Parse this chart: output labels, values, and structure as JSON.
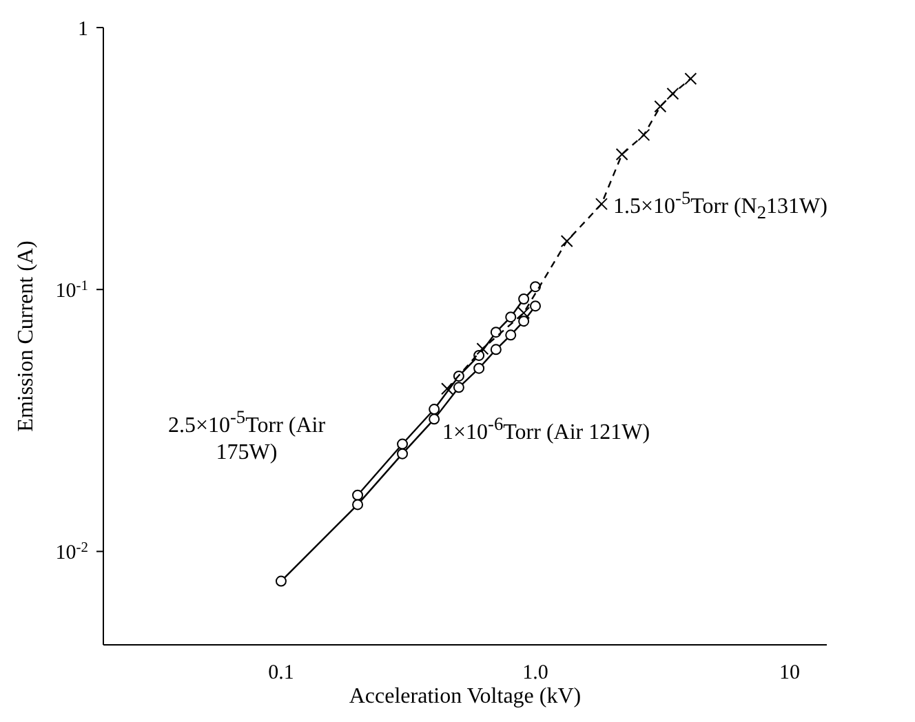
{
  "chart_data": {
    "type": "line",
    "xlabel": "Acceleration Voltage (kV)",
    "ylabel": "Emission Current (A)",
    "log": "xy",
    "grid": false,
    "legend": false,
    "xlim": [
      0.02,
      14
    ],
    "ylim": [
      0.0044,
      1
    ],
    "xticks": [
      0.1,
      {
        "value": 1,
        "label": "1.0"
      },
      10
    ],
    "yticks": [
      {
        "value": 0.01,
        "label": "10$^{-2}$"
      },
      {
        "value": 0.1,
        "label": "10$^{-1}$"
      },
      1
    ],
    "series": [
      {
        "name": "2.5×10$^{-5}$Torr (Air 175W)",
        "color": "#000000",
        "marker": "circle",
        "line_style": "solid",
        "x": [
          0.2,
          0.3,
          0.4,
          0.5,
          0.6,
          0.7,
          0.8,
          0.9,
          1.0
        ],
        "values": [
          0.0164,
          0.0257,
          0.0349,
          0.0467,
          0.056,
          0.0687,
          0.0785,
          0.092,
          0.1025
        ]
      },
      {
        "name": "1×10$^{-6}$Torr (Air 121W)",
        "color": "#000000",
        "marker": "circle",
        "line_style": "solid",
        "x": [
          0.1,
          0.2,
          0.3,
          0.4,
          0.5,
          0.6,
          0.7,
          0.8,
          0.9,
          1.0
        ],
        "values": [
          0.0077,
          0.0151,
          0.0236,
          0.032,
          0.0423,
          0.05,
          0.059,
          0.067,
          0.0757,
          0.0865
        ]
      },
      {
        "name": "1.5×10$^{-5}$Torr (N$_{2}$131W)",
        "color": "#000000",
        "marker": "cross",
        "line_style": "dashed",
        "x": [
          0.45,
          0.62,
          0.9,
          1.33,
          1.82,
          2.19,
          2.67,
          3.1,
          3.47,
          4.08
        ],
        "values": [
          0.0418,
          0.0594,
          0.0814,
          0.153,
          0.212,
          0.328,
          0.389,
          0.5,
          0.559,
          0.638
        ]
      }
    ]
  }
}
